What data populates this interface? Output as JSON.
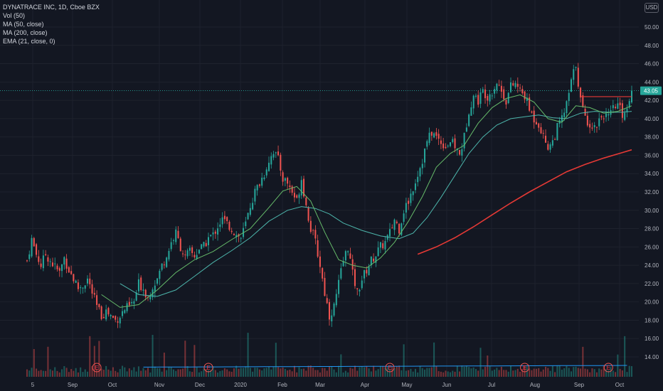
{
  "legend": {
    "title": "DYNATRACE INC, 1D, Cboe BZX",
    "vol": "Vol (50)",
    "ma50": "MA (50, close)",
    "ma200": "MA (200, close)",
    "ema21": "EMA (21, close, 0)"
  },
  "currency": "USD",
  "last_price_label": "43.05",
  "earnings_label": "E",
  "colors": {
    "background": "#131722",
    "up": "#26a69a",
    "down": "#ef5350",
    "ma50": "#4db6ac",
    "ma200": "#e53935",
    "ema21": "#66bb6a",
    "grid": "#1e222d",
    "axis_text": "#b2b5be",
    "volume_ma": "#2196f3"
  },
  "chart_data": {
    "type": "candlestick",
    "y_axis": {
      "min": 14,
      "max": 50,
      "ticks": [
        "14.00",
        "16.00",
        "18.00",
        "20.00",
        "22.00",
        "24.00",
        "26.00",
        "28.00",
        "30.00",
        "32.00",
        "34.00",
        "36.00",
        "38.00",
        "40.00",
        "42.00",
        "44.00",
        "46.00",
        "48.00",
        "50.00"
      ]
    },
    "x_axis": {
      "ticks": [
        "5",
        "Sep",
        "Oct",
        "Nov",
        "Dec",
        "2020",
        "Feb",
        "Mar",
        "Apr",
        "May",
        "Jun",
        "Jul",
        "Aug",
        "Sep",
        "Oct"
      ]
    },
    "close_path": [
      [
        0,
        24.5
      ],
      [
        2,
        26.8
      ],
      [
        4,
        25.2
      ],
      [
        6,
        24
      ],
      [
        8,
        25.2
      ],
      [
        10,
        24.5
      ],
      [
        12,
        23.8
      ],
      [
        14,
        23.2
      ],
      [
        16,
        24.8
      ],
      [
        18,
        23.5
      ],
      [
        20,
        22.5
      ],
      [
        22,
        21.5
      ],
      [
        24,
        21.8
      ],
      [
        26,
        22.5
      ],
      [
        28,
        21
      ],
      [
        30,
        19.5
      ],
      [
        32,
        18.5
      ],
      [
        34,
        19
      ],
      [
        36,
        18.5
      ],
      [
        38,
        18
      ],
      [
        40,
        18.5
      ],
      [
        42,
        19.2
      ],
      [
        44,
        19.5
      ],
      [
        46,
        20
      ],
      [
        48,
        22
      ],
      [
        50,
        21.5
      ],
      [
        52,
        20.5
      ],
      [
        54,
        21.8
      ],
      [
        56,
        22.5
      ],
      [
        58,
        24
      ],
      [
        60,
        25
      ],
      [
        62,
        26.5
      ],
      [
        64,
        27.5
      ],
      [
        66,
        26
      ],
      [
        68,
        24.8
      ],
      [
        70,
        25.5
      ],
      [
        72,
        25
      ],
      [
        74,
        25.8
      ],
      [
        76,
        26
      ],
      [
        78,
        27
      ],
      [
        80,
        27.3
      ],
      [
        82,
        28.3
      ],
      [
        84,
        29
      ],
      [
        86,
        28.5
      ],
      [
        88,
        28
      ],
      [
        90,
        27.3
      ],
      [
        92,
        27
      ],
      [
        94,
        28.5
      ],
      [
        96,
        30.5
      ],
      [
        98,
        32
      ],
      [
        100,
        33
      ],
      [
        102,
        34
      ],
      [
        104,
        35.5
      ],
      [
        106,
        36.5
      ],
      [
        108,
        35.5
      ],
      [
        110,
        33.5
      ],
      [
        112,
        33
      ],
      [
        114,
        32
      ],
      [
        116,
        31
      ],
      [
        118,
        33.5
      ],
      [
        120,
        30.5
      ],
      [
        122,
        28
      ],
      [
        124,
        26.5
      ],
      [
        126,
        24
      ],
      [
        128,
        21
      ],
      [
        130,
        18.5
      ],
      [
        132,
        19.5
      ],
      [
        134,
        22
      ],
      [
        136,
        24.5
      ],
      [
        138,
        26
      ],
      [
        140,
        23
      ],
      [
        142,
        21
      ],
      [
        144,
        22.5
      ],
      [
        146,
        23.5
      ],
      [
        148,
        24.5
      ],
      [
        150,
        25.2
      ],
      [
        152,
        26
      ],
      [
        154,
        26.5
      ],
      [
        156,
        27.5
      ],
      [
        158,
        29
      ],
      [
        160,
        28
      ],
      [
        162,
        30
      ],
      [
        164,
        31
      ],
      [
        166,
        32.5
      ],
      [
        168,
        34
      ],
      [
        170,
        35.5
      ],
      [
        172,
        37.5
      ],
      [
        174,
        38.5
      ],
      [
        176,
        38
      ],
      [
        178,
        37.5
      ],
      [
        180,
        37
      ],
      [
        182,
        37.5
      ],
      [
        184,
        37
      ],
      [
        186,
        36
      ],
      [
        188,
        38
      ],
      [
        190,
        41
      ],
      [
        192,
        42.5
      ],
      [
        194,
        42
      ],
      [
        196,
        43
      ],
      [
        198,
        42.5
      ],
      [
        200,
        43
      ],
      [
        202,
        44
      ],
      [
        204,
        43
      ],
      [
        206,
        42
      ],
      [
        208,
        43.5
      ],
      [
        210,
        43.8
      ],
      [
        212,
        43
      ],
      [
        214,
        42.5
      ],
      [
        216,
        41
      ],
      [
        218,
        40
      ],
      [
        220,
        39.5
      ],
      [
        222,
        38
      ],
      [
        224,
        37
      ],
      [
        226,
        37.5
      ],
      [
        228,
        39
      ],
      [
        230,
        40
      ],
      [
        232,
        41.5
      ],
      [
        234,
        44
      ],
      [
        236,
        46
      ],
      [
        238,
        42
      ],
      [
        240,
        40
      ],
      [
        242,
        39.5
      ],
      [
        244,
        39
      ],
      [
        246,
        40
      ],
      [
        248,
        40.5
      ],
      [
        250,
        40
      ],
      [
        252,
        41
      ],
      [
        254,
        41.5
      ],
      [
        256,
        40.5
      ],
      [
        258,
        41.2
      ],
      [
        260,
        43.05
      ]
    ],
    "series": [
      {
        "name": "MA (50, close)",
        "values": [
          [
            40,
            22.0
          ],
          [
            48,
            20.8
          ],
          [
            56,
            20.6
          ],
          [
            64,
            21.3
          ],
          [
            72,
            22.8
          ],
          [
            80,
            24.3
          ],
          [
            88,
            25.6
          ],
          [
            96,
            27
          ],
          [
            104,
            28.8
          ],
          [
            112,
            30
          ],
          [
            118,
            30.4
          ],
          [
            124,
            30.2
          ],
          [
            130,
            29.6
          ],
          [
            136,
            28.6
          ],
          [
            144,
            27.8
          ],
          [
            152,
            27.2
          ],
          [
            160,
            26.9
          ],
          [
            166,
            27.5
          ],
          [
            172,
            29.2
          ],
          [
            178,
            31.4
          ],
          [
            184,
            33.8
          ],
          [
            190,
            36.2
          ],
          [
            196,
            38
          ],
          [
            202,
            39.3
          ],
          [
            208,
            40
          ],
          [
            214,
            40.2
          ],
          [
            220,
            40.4
          ],
          [
            226,
            40.1
          ],
          [
            232,
            40
          ],
          [
            238,
            40.6
          ],
          [
            244,
            40.8
          ],
          [
            250,
            40.7
          ],
          [
            256,
            40.7
          ],
          [
            260,
            40.8
          ]
        ]
      },
      {
        "name": "MA (200, close)",
        "values": [
          [
            168,
            25.2
          ],
          [
            176,
            26
          ],
          [
            184,
            27
          ],
          [
            192,
            28.2
          ],
          [
            200,
            29.5
          ],
          [
            208,
            30.8
          ],
          [
            216,
            32
          ],
          [
            224,
            33.1
          ],
          [
            232,
            34.2
          ],
          [
            240,
            35
          ],
          [
            248,
            35.7
          ],
          [
            256,
            36.3
          ],
          [
            260,
            36.6
          ]
        ]
      },
      {
        "name": "EMA (21, close, 0)",
        "values": [
          [
            32,
            20.8
          ],
          [
            40,
            19.4
          ],
          [
            48,
            19.7
          ],
          [
            56,
            21.3
          ],
          [
            64,
            23.2
          ],
          [
            72,
            24.6
          ],
          [
            80,
            25.5
          ],
          [
            88,
            26.8
          ],
          [
            96,
            28
          ],
          [
            104,
            30.3
          ],
          [
            110,
            32.1
          ],
          [
            116,
            32.6
          ],
          [
            122,
            31
          ],
          [
            128,
            27.6
          ],
          [
            134,
            24.6
          ],
          [
            140,
            24
          ],
          [
            146,
            23.7
          ],
          [
            152,
            24.8
          ],
          [
            158,
            26.5
          ],
          [
            164,
            28.8
          ],
          [
            170,
            31.5
          ],
          [
            176,
            34.7
          ],
          [
            182,
            36.2
          ],
          [
            188,
            37.1
          ],
          [
            194,
            39.5
          ],
          [
            200,
            41.2
          ],
          [
            206,
            42.2
          ],
          [
            212,
            42.6
          ],
          [
            218,
            41.8
          ],
          [
            224,
            40
          ],
          [
            230,
            39.6
          ],
          [
            236,
            41.4
          ],
          [
            242,
            41.2
          ],
          [
            248,
            40.6
          ],
          [
            254,
            40.8
          ],
          [
            260,
            41.4
          ]
        ]
      }
    ],
    "earnings_events_at_days": [
      30,
      78,
      156,
      214,
      250
    ]
  }
}
